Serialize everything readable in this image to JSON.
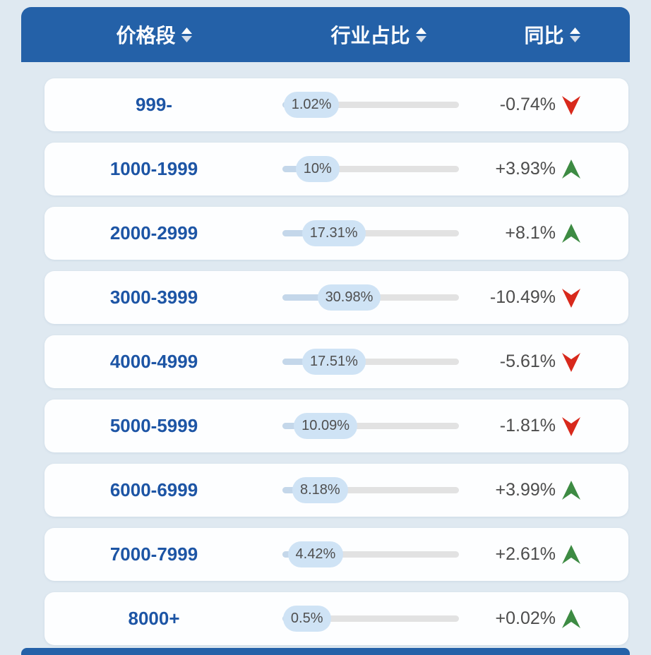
{
  "header": {
    "columns": [
      {
        "label": "价格段",
        "sort_icon": "sort-arrows-icon"
      },
      {
        "label": "行业占比",
        "sort_icon": "sort-arrows-icon"
      },
      {
        "label": "同比",
        "sort_icon": "sort-arrows-icon"
      }
    ]
  },
  "chart_data": {
    "type": "table",
    "columns": [
      "价格段",
      "行业占比",
      "同比"
    ],
    "rows": [
      {
        "range": "999-",
        "share": "1.02%",
        "share_value": 1.02,
        "yoy": "-0.74%",
        "direction": "down"
      },
      {
        "range": "1000-1999",
        "share": "10%",
        "share_value": 10.0,
        "yoy": "+3.93%",
        "direction": "up"
      },
      {
        "range": "2000-2999",
        "share": "17.31%",
        "share_value": 17.31,
        "yoy": "+8.1%",
        "direction": "up"
      },
      {
        "range": "3000-3999",
        "share": "30.98%",
        "share_value": 30.98,
        "yoy": "-10.49%",
        "direction": "down"
      },
      {
        "range": "4000-4999",
        "share": "17.51%",
        "share_value": 17.51,
        "yoy": "-5.61%",
        "direction": "down"
      },
      {
        "range": "5000-5999",
        "share": "10.09%",
        "share_value": 10.09,
        "yoy": "-1.81%",
        "direction": "down"
      },
      {
        "range": "6000-6999",
        "share": "8.18%",
        "share_value": 8.18,
        "yoy": "+3.99%",
        "direction": "up"
      },
      {
        "range": "7000-7999",
        "share": "4.42%",
        "share_value": 4.42,
        "yoy": "+2.61%",
        "direction": "up"
      },
      {
        "range": "8000+",
        "share": "0.5%",
        "share_value": 0.5,
        "yoy": "+0.02%",
        "direction": "up"
      }
    ],
    "share_axis_max": 100,
    "icons": {
      "up": "arrow-up-icon",
      "down": "arrow-down-icon",
      "sort": "sort-arrows-icon"
    }
  },
  "colors": {
    "header_bg": "#2461a8",
    "page_bg": "#dfe9f1",
    "card_bg": "#fdfeff",
    "price_blue": "#1d55a5",
    "pill_bg": "#cfe3f5",
    "fill_blue": "#c4d7ea",
    "track_gray": "#e2e2e2",
    "yoy_gray": "#4c4c4c",
    "up_green": "#3d8b43",
    "down_red": "#d8291c"
  }
}
